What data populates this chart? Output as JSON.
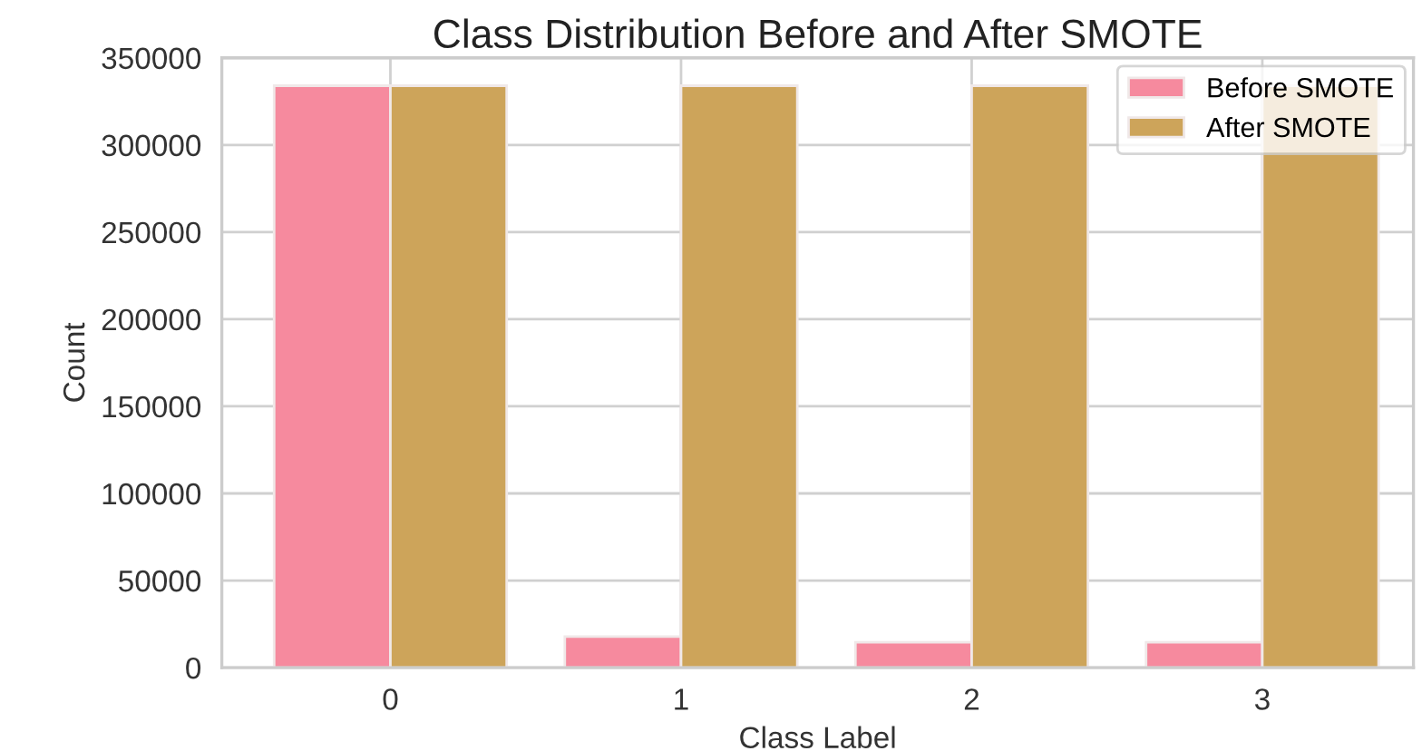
{
  "chart_data": {
    "type": "bar",
    "title": "Class Distribution Before and After SMOTE",
    "xlabel": "Class Label",
    "ylabel": "Count",
    "categories": [
      "0",
      "1",
      "2",
      "3"
    ],
    "series": [
      {
        "name": "Before SMOTE",
        "color": "#f68a9e",
        "values": [
          334000,
          17800,
          14600,
          14600
        ]
      },
      {
        "name": "After SMOTE",
        "color": "#cda45a",
        "values": [
          334000,
          334000,
          334000,
          334000
        ]
      }
    ],
    "ylim": [
      0,
      350000
    ],
    "yticks": [
      0,
      50000,
      100000,
      150000,
      200000,
      250000,
      300000,
      350000
    ],
    "grid": true,
    "legend": "top right"
  }
}
